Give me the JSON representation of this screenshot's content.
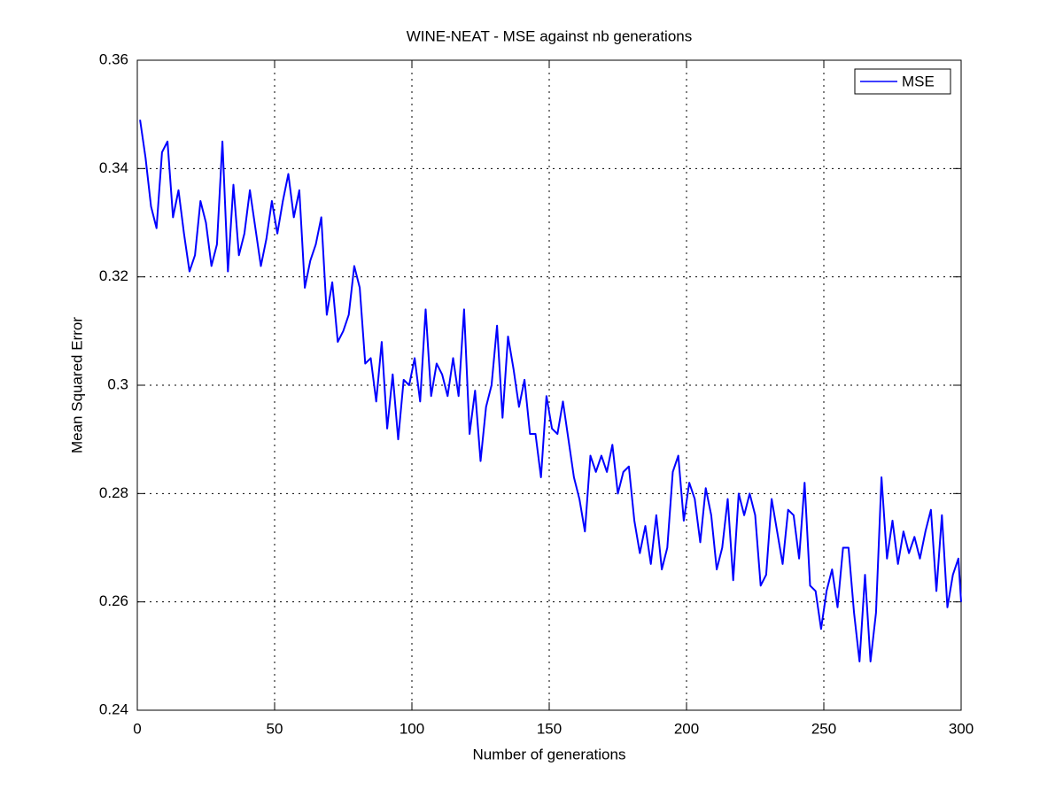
{
  "chart_data": {
    "type": "line",
    "title": "WINE-NEAT - MSE against nb generations",
    "xlabel": "Number of generations",
    "ylabel": "Mean Squared Error",
    "x": [
      1,
      3,
      5,
      7,
      9,
      11,
      13,
      15,
      17,
      19,
      21,
      23,
      25,
      27,
      29,
      31,
      33,
      35,
      37,
      39,
      41,
      43,
      45,
      47,
      49,
      51,
      53,
      55,
      57,
      59,
      61,
      63,
      65,
      67,
      69,
      71,
      73,
      75,
      77,
      79,
      81,
      83,
      85,
      87,
      89,
      91,
      93,
      95,
      97,
      99,
      101,
      103,
      105,
      107,
      109,
      111,
      113,
      115,
      117,
      119,
      121,
      123,
      125,
      127,
      129,
      131,
      133,
      135,
      137,
      139,
      141,
      143,
      145,
      147,
      149,
      151,
      153,
      155,
      157,
      159,
      161,
      163,
      165,
      167,
      169,
      171,
      173,
      175,
      177,
      179,
      181,
      183,
      185,
      187,
      189,
      191,
      193,
      195,
      197,
      199,
      201,
      203,
      205,
      207,
      209,
      211,
      213,
      215,
      217,
      219,
      221,
      223,
      225,
      227,
      229,
      231,
      233,
      235,
      237,
      239,
      241,
      243,
      245,
      247,
      249,
      251,
      253,
      255,
      257,
      259,
      261,
      263,
      265,
      267,
      269,
      271,
      273,
      275,
      277,
      279,
      281,
      283,
      285,
      287,
      289,
      291,
      293,
      295,
      297,
      299,
      300
    ],
    "series": [
      {
        "name": "MSE",
        "color": "#0000ff",
        "values": [
          0.349,
          0.342,
          0.333,
          0.329,
          0.343,
          0.345,
          0.331,
          0.336,
          0.328,
          0.321,
          0.324,
          0.334,
          0.33,
          0.322,
          0.326,
          0.345,
          0.321,
          0.337,
          0.324,
          0.328,
          0.336,
          0.329,
          0.322,
          0.327,
          0.334,
          0.328,
          0.334,
          0.339,
          0.331,
          0.336,
          0.318,
          0.323,
          0.326,
          0.331,
          0.313,
          0.319,
          0.308,
          0.31,
          0.313,
          0.322,
          0.318,
          0.304,
          0.305,
          0.297,
          0.308,
          0.292,
          0.302,
          0.29,
          0.301,
          0.3,
          0.305,
          0.297,
          0.314,
          0.298,
          0.304,
          0.302,
          0.298,
          0.305,
          0.298,
          0.314,
          0.291,
          0.299,
          0.286,
          0.296,
          0.3,
          0.311,
          0.294,
          0.309,
          0.303,
          0.296,
          0.301,
          0.291,
          0.291,
          0.283,
          0.298,
          0.292,
          0.291,
          0.297,
          0.29,
          0.283,
          0.279,
          0.273,
          0.287,
          0.284,
          0.287,
          0.284,
          0.289,
          0.28,
          0.284,
          0.285,
          0.275,
          0.269,
          0.274,
          0.267,
          0.276,
          0.266,
          0.27,
          0.284,
          0.287,
          0.275,
          0.282,
          0.279,
          0.271,
          0.281,
          0.276,
          0.266,
          0.27,
          0.279,
          0.264,
          0.28,
          0.276,
          0.28,
          0.276,
          0.263,
          0.265,
          0.279,
          0.273,
          0.267,
          0.277,
          0.276,
          0.268,
          0.282,
          0.263,
          0.262,
          0.255,
          0.262,
          0.266,
          0.259,
          0.27,
          0.27,
          0.258,
          0.249,
          0.265,
          0.249,
          0.258,
          0.283,
          0.268,
          0.275,
          0.267,
          0.273,
          0.269,
          0.272,
          0.268,
          0.273,
          0.277,
          0.262,
          0.276,
          0.259,
          0.265,
          0.268,
          0.26
        ]
      }
    ],
    "xlim": [
      0,
      300
    ],
    "xticks": [
      0,
      50,
      100,
      150,
      200,
      250,
      300
    ],
    "ylim": [
      0.24,
      0.36
    ],
    "yticks": [
      0.24,
      0.26,
      0.28,
      0.3,
      0.32,
      0.34,
      0.36
    ],
    "grid": true,
    "legend": "upper right"
  }
}
